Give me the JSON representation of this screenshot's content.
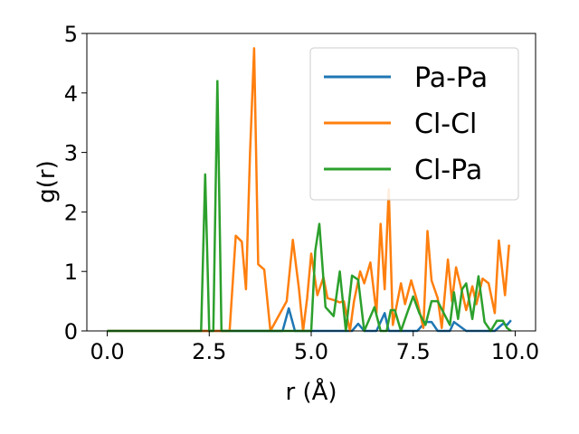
{
  "chart_data": {
    "type": "line",
    "xlabel": "r (Å)",
    "ylabel": "g(r)",
    "xlim": [
      -0.5,
      10.5
    ],
    "ylim": [
      0,
      5
    ],
    "x_ticks": [
      "0.0",
      "2.5",
      "5.0",
      "7.5",
      "10.0"
    ],
    "y_ticks": [
      "0",
      "1",
      "2",
      "3",
      "4",
      "5"
    ],
    "grid": false,
    "legend_position": "top-right",
    "series": [
      {
        "name": "Pa-Pa",
        "color": "#1f77b4",
        "x": [
          0.0,
          4.3,
          4.45,
          4.6,
          6.0,
          6.15,
          6.3,
          6.6,
          6.8,
          6.9,
          7.6,
          7.8,
          7.95,
          8.1,
          8.4,
          8.5,
          8.7,
          8.8,
          9.5,
          9.7,
          9.8,
          9.9
        ],
        "values": [
          0,
          0,
          0.38,
          0,
          0,
          0.12,
          0,
          0,
          0.3,
          0,
          0,
          0.15,
          0.15,
          0,
          0,
          0.15,
          0.05,
          0,
          0,
          0.12,
          0.1,
          0.18
        ]
      },
      {
        "name": "Cl-Cl",
        "color": "#ff7f0e",
        "x": [
          0.0,
          3.0,
          3.15,
          3.3,
          3.4,
          3.5,
          3.6,
          3.7,
          3.85,
          4.0,
          4.4,
          4.55,
          4.7,
          4.8,
          4.9,
          5.0,
          5.15,
          5.3,
          5.4,
          5.55,
          5.7,
          5.8,
          5.95,
          6.05,
          6.2,
          6.3,
          6.45,
          6.6,
          6.7,
          6.8,
          6.9,
          7.0,
          7.2,
          7.3,
          7.45,
          7.6,
          7.75,
          7.85,
          7.95,
          8.1,
          8.2,
          8.35,
          8.45,
          8.55,
          8.7,
          8.8,
          8.95,
          9.05,
          9.2,
          9.35,
          9.5,
          9.6,
          9.75,
          9.85
        ],
        "values": [
          0,
          0,
          1.6,
          1.5,
          0.7,
          3.0,
          4.75,
          1.12,
          1.03,
          0,
          0.5,
          1.53,
          0.7,
          0,
          0.55,
          1.3,
          0.6,
          0.9,
          0.55,
          0.52,
          0.48,
          0.5,
          0,
          0.5,
          1.0,
          0.8,
          1.15,
          0.3,
          1.8,
          0.7,
          2.38,
          0.1,
          0.8,
          0.45,
          0.85,
          0.5,
          0.05,
          1.68,
          0.85,
          0.55,
          0.05,
          1.2,
          0.5,
          1.07,
          0.65,
          0.35,
          0.75,
          0.45,
          0.88,
          0.8,
          0.3,
          1.52,
          0.6,
          1.45
        ]
      },
      {
        "name": "Cl-Pa",
        "color": "#2ca02c",
        "x": [
          0.0,
          2.3,
          2.4,
          2.5,
          2.6,
          2.7,
          2.8,
          3.0,
          5.0,
          5.1,
          5.2,
          5.35,
          5.55,
          5.7,
          5.85,
          6.0,
          6.15,
          6.3,
          6.55,
          6.7,
          6.85,
          6.95,
          7.05,
          7.2,
          7.35,
          7.5,
          7.65,
          7.8,
          7.95,
          8.1,
          8.25,
          8.4,
          8.5,
          8.6,
          8.7,
          8.8,
          8.95,
          9.1,
          9.25,
          9.4,
          9.55,
          9.7,
          9.8,
          9.9
        ],
        "values": [
          0,
          0,
          2.63,
          0,
          0,
          4.2,
          0,
          0,
          0,
          1.35,
          1.8,
          0.4,
          0.25,
          1.0,
          0,
          0.93,
          0.86,
          0,
          0.4,
          0,
          0,
          0.35,
          0.35,
          0,
          0.3,
          0.58,
          0.3,
          0.1,
          0.5,
          0.5,
          0.3,
          0.1,
          0.65,
          0.2,
          0.7,
          0.8,
          0.2,
          0.92,
          0.15,
          0,
          0.17,
          0.17,
          0.05,
          0
        ]
      }
    ]
  }
}
